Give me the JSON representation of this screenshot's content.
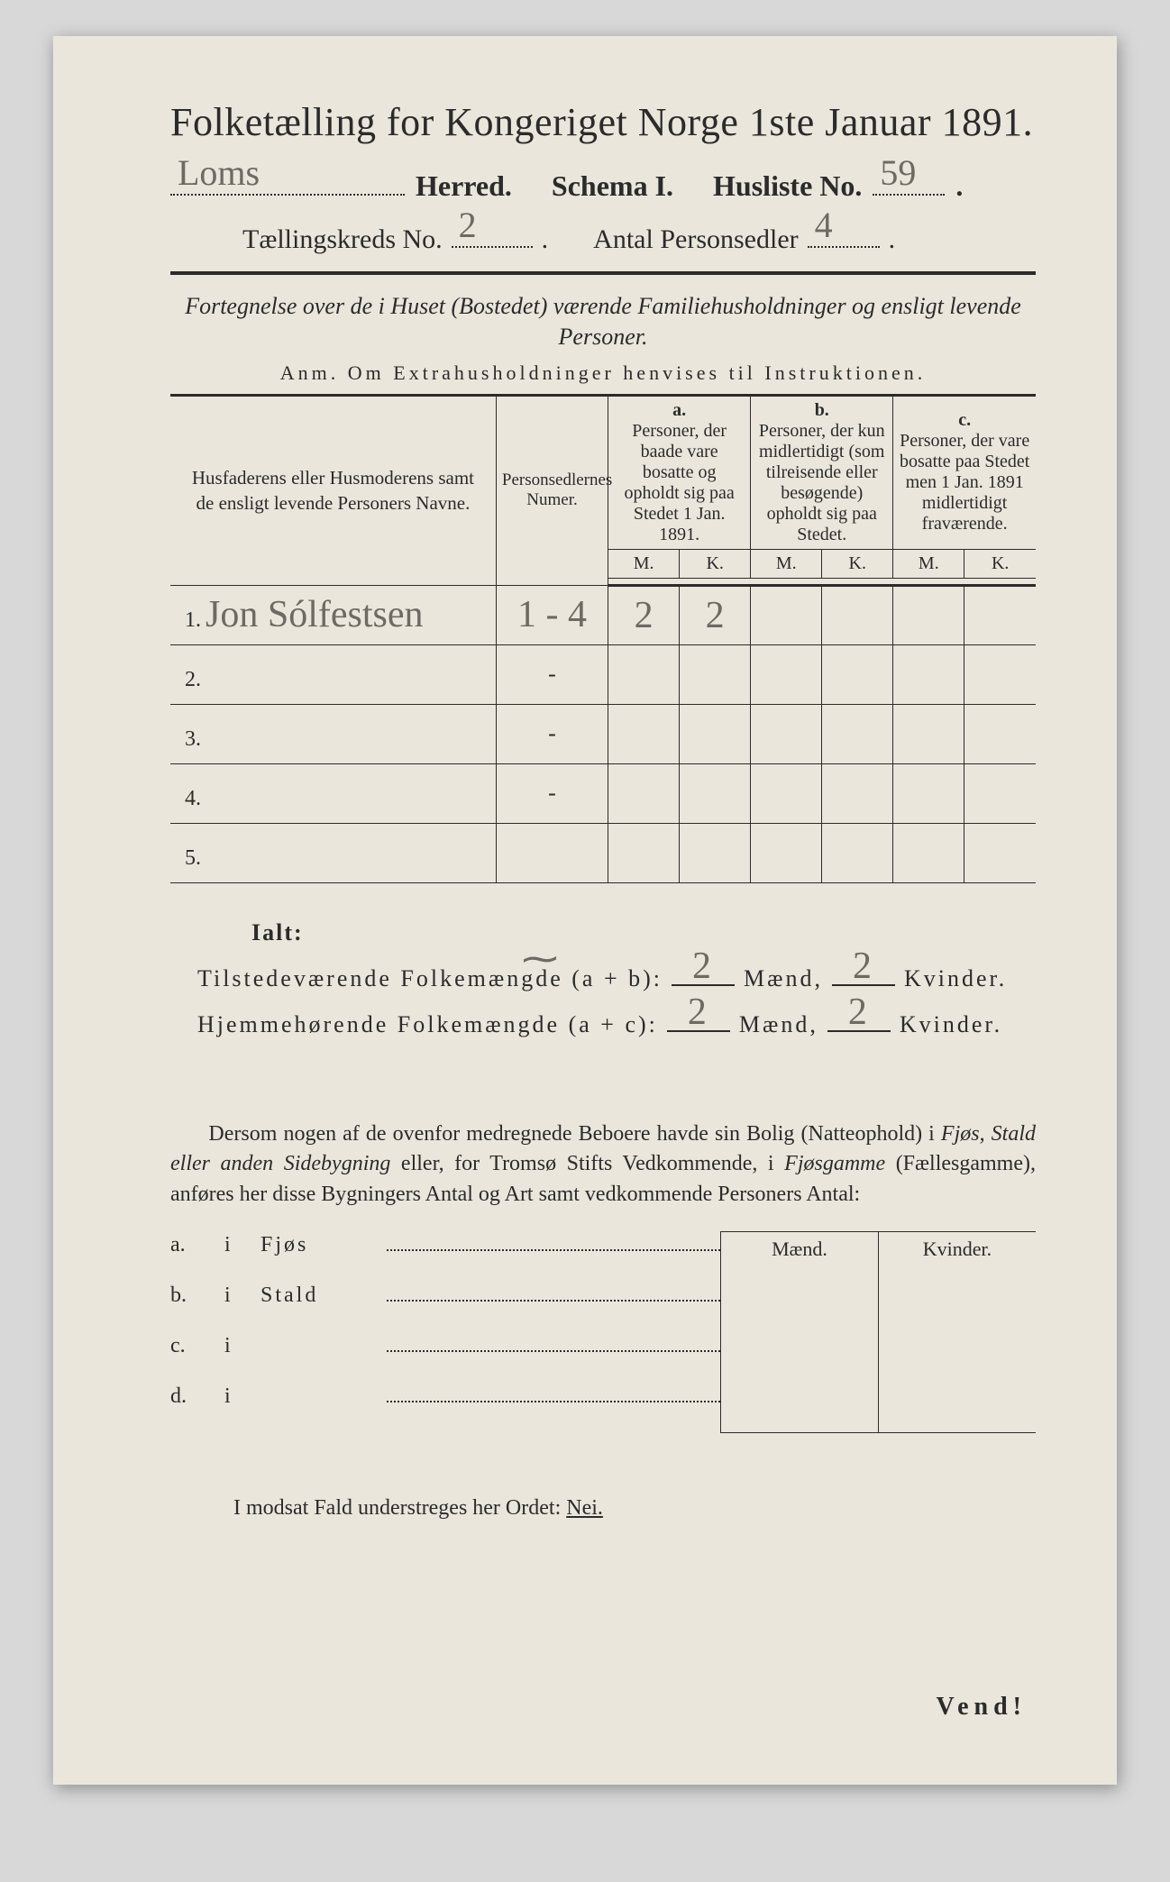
{
  "title": "Folketælling for Kongeriget Norge 1ste Januar 1891.",
  "header": {
    "herred_hand": "Loms",
    "herred_label": "Herred.",
    "schema_label": "Schema I.",
    "husliste_label": "Husliste No.",
    "husliste_no_hand": "59",
    "kreds_label": "Tællingskreds No.",
    "kreds_no_hand": "2",
    "antal_label": "Antal Personsedler",
    "antal_hand": "4"
  },
  "intro_italic": "Fortegnelse over de i Huset (Bostedet) værende Familiehusholdninger og ensligt levende Personer.",
  "anm": "Anm.  Om Extrahusholdninger henvises til Instruktionen.",
  "table": {
    "colhead_name": "Husfaderens eller Husmoderens samt de ensligt levende Personers Navne.",
    "colhead_num": "Personsedlernes Numer.",
    "group_a_label": "a.",
    "group_a_text": "Personer, der baade vare bosatte og opholdt sig paa Stedet 1 Jan. 1891.",
    "group_b_label": "b.",
    "group_b_text": "Personer, der kun midlertidigt (som tilreisende eller besøgende) opholdt sig paa Stedet.",
    "group_c_label": "c.",
    "group_c_text": "Personer, der vare bosatte paa Stedet men 1 Jan. 1891 midlertidigt fraværende.",
    "mk_m": "M.",
    "mk_k": "K.",
    "rows": [
      {
        "n": "1.",
        "name_hand": "Jon Sólfestsen",
        "num_hand": "1 - 4",
        "a_m": "2",
        "a_k": "2",
        "b_m": "",
        "b_k": "",
        "c_m": "",
        "c_k": ""
      },
      {
        "n": "2.",
        "name_hand": "",
        "num_hand": "-",
        "a_m": "",
        "a_k": "",
        "b_m": "",
        "b_k": "",
        "c_m": "",
        "c_k": ""
      },
      {
        "n": "3.",
        "name_hand": "",
        "num_hand": "-",
        "a_m": "",
        "a_k": "",
        "b_m": "",
        "b_k": "",
        "c_m": "",
        "c_k": ""
      },
      {
        "n": "4.",
        "name_hand": "",
        "num_hand": "-",
        "a_m": "",
        "a_k": "",
        "b_m": "",
        "b_k": "",
        "c_m": "",
        "c_k": ""
      },
      {
        "n": "5.",
        "name_hand": "",
        "num_hand": "",
        "a_m": "",
        "a_k": "",
        "b_m": "",
        "b_k": "",
        "c_m": "",
        "c_k": ""
      }
    ]
  },
  "totals": {
    "ialt": "Ialt:",
    "row1_label": "Tilstedeværende Folkemængde (a + b):",
    "row2_label": "Hjemmehørende Folkemængde (a + c):",
    "maend": "Mænd,",
    "kvinder": "Kvinder.",
    "r1_m": "2",
    "r1_k": "2",
    "r2_m": "2",
    "r2_k": "2"
  },
  "para": "Dersom nogen af de ovenfor medregnede Beboere havde sin Bolig (Natteophold) i Fjøs, Stald eller anden Sidebygning eller, for Tromsø Stifts Vedkommende, i Fjøsgamme (Fællesgamme), anføres her disse Bygningers Antal og Art samt vedkommende Personers Antal:",
  "sidebuild": {
    "head_m": "Mænd.",
    "head_k": "Kvinder.",
    "rows": [
      {
        "lab": "a.",
        "i": "i",
        "typ": "Fjøs"
      },
      {
        "lab": "b.",
        "i": "i",
        "typ": "Stald"
      },
      {
        "lab": "c.",
        "i": "i",
        "typ": ""
      },
      {
        "lab": "d.",
        "i": "i",
        "typ": ""
      }
    ]
  },
  "nei_line": "I modsat Fald understreges her Ordet:",
  "nei_word": "Nei.",
  "vend": "Vend!",
  "squiggle": "⁓"
}
